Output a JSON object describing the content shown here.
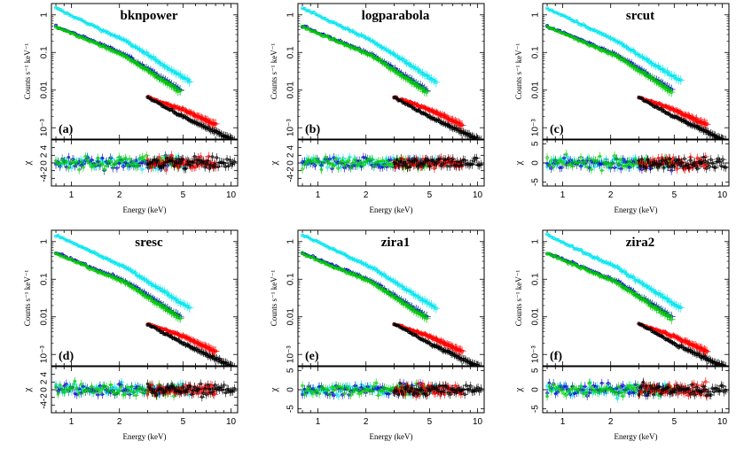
{
  "chart_data": [
    {
      "type": "scatter",
      "title": "bknpower",
      "panel_label": "(a)",
      "xlabel": "Energy (keV)",
      "ylabel": "Counts s⁻¹ keV⁻¹",
      "residual_label": "χ",
      "x_scale": "log",
      "y_scale": "log",
      "xlim": [
        0.75,
        11
      ],
      "ylim": [
        0.0005,
        2
      ],
      "x_ticks": [
        "1",
        "2",
        "5",
        "10"
      ],
      "y_ticks": [
        "10⁻³",
        "0.01",
        "0.1",
        "1"
      ],
      "residual_ylim": [
        -6,
        6
      ],
      "residual_ticks": [
        "-4",
        "-2",
        "0",
        "2",
        "4"
      ],
      "series": [
        {
          "color": "#00e5ee",
          "x_range": [
            0.8,
            5.5
          ],
          "y_range": [
            1.5,
            0.017
          ],
          "spectral_break": 2.2
        },
        {
          "color": "#0000cd",
          "x_range": [
            0.8,
            4.8
          ],
          "y_range": [
            0.5,
            0.01
          ],
          "spectral_break": 2.2
        },
        {
          "color": "#00cc00",
          "x_range": [
            0.8,
            4.8
          ],
          "y_range": [
            0.48,
            0.009
          ],
          "spectral_break": 2.2
        },
        {
          "color": "#ff0000",
          "x_range": [
            3.0,
            8.0
          ],
          "y_range": [
            0.0065,
            0.0012
          ],
          "spectral_break": 5.0
        },
        {
          "color": "#000000",
          "x_range": [
            3.0,
            10.5
          ],
          "y_range": [
            0.0065,
            0.00045
          ],
          "spectral_break": 5.0
        }
      ]
    },
    {
      "type": "scatter",
      "title": "logparabola",
      "panel_label": "(b)",
      "xlabel": "Energy (keV)",
      "ylabel": "Counts s⁻¹ keV⁻¹",
      "residual_label": "χ",
      "x_scale": "log",
      "y_scale": "log",
      "xlim": [
        0.75,
        11
      ],
      "ylim": [
        0.0005,
        2
      ],
      "x_ticks": [
        "1",
        "2",
        "5",
        "10"
      ],
      "y_ticks": [
        "10⁻³",
        "0.01",
        "0.1",
        "1"
      ],
      "residual_ylim": [
        -6,
        6
      ],
      "residual_ticks": [
        "-4",
        "-2",
        "0",
        "2",
        "4"
      ],
      "series": [
        {
          "color": "#00e5ee",
          "x_range": [
            0.8,
            5.5
          ],
          "y_range": [
            1.5,
            0.017
          ],
          "spectral_break": 2.2
        },
        {
          "color": "#0000cd",
          "x_range": [
            0.8,
            4.8
          ],
          "y_range": [
            0.5,
            0.01
          ],
          "spectral_break": 2.2
        },
        {
          "color": "#00cc00",
          "x_range": [
            0.8,
            4.8
          ],
          "y_range": [
            0.48,
            0.009
          ],
          "spectral_break": 2.2
        },
        {
          "color": "#ff0000",
          "x_range": [
            3.0,
            8.0
          ],
          "y_range": [
            0.0065,
            0.0012
          ],
          "spectral_break": 5.0
        },
        {
          "color": "#000000",
          "x_range": [
            3.0,
            10.5
          ],
          "y_range": [
            0.0065,
            0.00045
          ],
          "spectral_break": 5.0
        }
      ]
    },
    {
      "type": "scatter",
      "title": "srcut",
      "panel_label": "(c)",
      "xlabel": "Energy (keV)",
      "ylabel": "Counts s⁻¹ keV⁻¹",
      "residual_label": "χ",
      "x_scale": "log",
      "y_scale": "log",
      "xlim": [
        0.75,
        11
      ],
      "ylim": [
        0.0005,
        2
      ],
      "x_ticks": [
        "1",
        "2",
        "5",
        "10"
      ],
      "y_ticks": [
        "10⁻³",
        "0.01",
        "0.1",
        "1"
      ],
      "residual_ylim": [
        -6,
        6
      ],
      "residual_ticks": [
        "-5",
        "0",
        "5"
      ],
      "series": [
        {
          "color": "#00e5ee",
          "x_range": [
            0.8,
            5.5
          ],
          "y_range": [
            1.5,
            0.017
          ],
          "spectral_break": 2.2
        },
        {
          "color": "#0000cd",
          "x_range": [
            0.8,
            4.8
          ],
          "y_range": [
            0.5,
            0.01
          ],
          "spectral_break": 2.2
        },
        {
          "color": "#00cc00",
          "x_range": [
            0.8,
            4.8
          ],
          "y_range": [
            0.48,
            0.009
          ],
          "spectral_break": 2.2
        },
        {
          "color": "#ff0000",
          "x_range": [
            3.0,
            8.0
          ],
          "y_range": [
            0.0065,
            0.0012
          ],
          "spectral_break": 5.0
        },
        {
          "color": "#000000",
          "x_range": [
            3.0,
            10.5
          ],
          "y_range": [
            0.0065,
            0.00045
          ],
          "spectral_break": 5.0
        }
      ]
    },
    {
      "type": "scatter",
      "title": "sresc",
      "panel_label": "(d)",
      "xlabel": "Energy (keV)",
      "ylabel": "Counts s⁻¹ keV⁻¹",
      "residual_label": "χ",
      "x_scale": "log",
      "y_scale": "log",
      "xlim": [
        0.75,
        11
      ],
      "ylim": [
        0.0005,
        2
      ],
      "x_ticks": [
        "1",
        "2",
        "5",
        "10"
      ],
      "y_ticks": [
        "10⁻³",
        "0.01",
        "0.1",
        "1"
      ],
      "residual_ylim": [
        -6,
        6
      ],
      "residual_ticks": [
        "-4",
        "-2",
        "0",
        "2",
        "4"
      ],
      "series": [
        {
          "color": "#00e5ee",
          "x_range": [
            0.8,
            5.5
          ],
          "y_range": [
            1.5,
            0.017
          ],
          "spectral_break": 2.2
        },
        {
          "color": "#0000cd",
          "x_range": [
            0.8,
            4.8
          ],
          "y_range": [
            0.5,
            0.01
          ],
          "spectral_break": 2.2
        },
        {
          "color": "#00cc00",
          "x_range": [
            0.8,
            4.8
          ],
          "y_range": [
            0.48,
            0.009
          ],
          "spectral_break": 2.2
        },
        {
          "color": "#ff0000",
          "x_range": [
            3.0,
            8.0
          ],
          "y_range": [
            0.0065,
            0.0012
          ],
          "spectral_break": 5.0
        },
        {
          "color": "#000000",
          "x_range": [
            3.0,
            10.5
          ],
          "y_range": [
            0.0065,
            0.00045
          ],
          "spectral_break": 5.0
        }
      ]
    },
    {
      "type": "scatter",
      "title": "zira1",
      "panel_label": "(e)",
      "xlabel": "Energy (keV)",
      "ylabel": "Counts s⁻¹ keV⁻¹",
      "residual_label": "χ",
      "x_scale": "log",
      "y_scale": "log",
      "xlim": [
        0.75,
        11
      ],
      "ylim": [
        0.0005,
        2
      ],
      "x_ticks": [
        "1",
        "2",
        "5",
        "10"
      ],
      "y_ticks": [
        "10⁻³",
        "0.01",
        "0.1",
        "1"
      ],
      "residual_ylim": [
        -6,
        6
      ],
      "residual_ticks": [
        "-5",
        "0",
        "5"
      ],
      "series": [
        {
          "color": "#00e5ee",
          "x_range": [
            0.8,
            5.5
          ],
          "y_range": [
            1.5,
            0.017
          ],
          "spectral_break": 2.2
        },
        {
          "color": "#0000cd",
          "x_range": [
            0.8,
            4.8
          ],
          "y_range": [
            0.5,
            0.01
          ],
          "spectral_break": 2.2
        },
        {
          "color": "#00cc00",
          "x_range": [
            0.8,
            4.8
          ],
          "y_range": [
            0.48,
            0.009
          ],
          "spectral_break": 2.2
        },
        {
          "color": "#ff0000",
          "x_range": [
            3.0,
            8.0
          ],
          "y_range": [
            0.0065,
            0.0012
          ],
          "spectral_break": 5.0
        },
        {
          "color": "#000000",
          "x_range": [
            3.0,
            10.5
          ],
          "y_range": [
            0.0065,
            0.00045
          ],
          "spectral_break": 5.0
        }
      ]
    },
    {
      "type": "scatter",
      "title": "zira2",
      "panel_label": "(f)",
      "xlabel": "Energy (keV)",
      "ylabel": "Counts s⁻¹ keV⁻¹",
      "residual_label": "χ",
      "x_scale": "log",
      "y_scale": "log",
      "xlim": [
        0.75,
        11
      ],
      "ylim": [
        0.0005,
        2
      ],
      "x_ticks": [
        "1",
        "2",
        "5",
        "10"
      ],
      "y_ticks": [
        "10⁻³",
        "0.01",
        "0.1",
        "1"
      ],
      "residual_ylim": [
        -6,
        6
      ],
      "residual_ticks": [
        "-5",
        "0",
        "5"
      ],
      "series": [
        {
          "color": "#00e5ee",
          "x_range": [
            0.8,
            5.5
          ],
          "y_range": [
            1.5,
            0.017
          ],
          "spectral_break": 2.2
        },
        {
          "color": "#0000cd",
          "x_range": [
            0.8,
            4.8
          ],
          "y_range": [
            0.5,
            0.01
          ],
          "spectral_break": 2.2
        },
        {
          "color": "#00cc00",
          "x_range": [
            0.8,
            4.8
          ],
          "y_range": [
            0.48,
            0.009
          ],
          "spectral_break": 2.2
        },
        {
          "color": "#ff0000",
          "x_range": [
            3.0,
            8.0
          ],
          "y_range": [
            0.0065,
            0.0012
          ],
          "spectral_break": 5.0
        },
        {
          "color": "#000000",
          "x_range": [
            3.0,
            10.5
          ],
          "y_range": [
            0.0065,
            0.00045
          ],
          "spectral_break": 5.0
        }
      ]
    }
  ]
}
